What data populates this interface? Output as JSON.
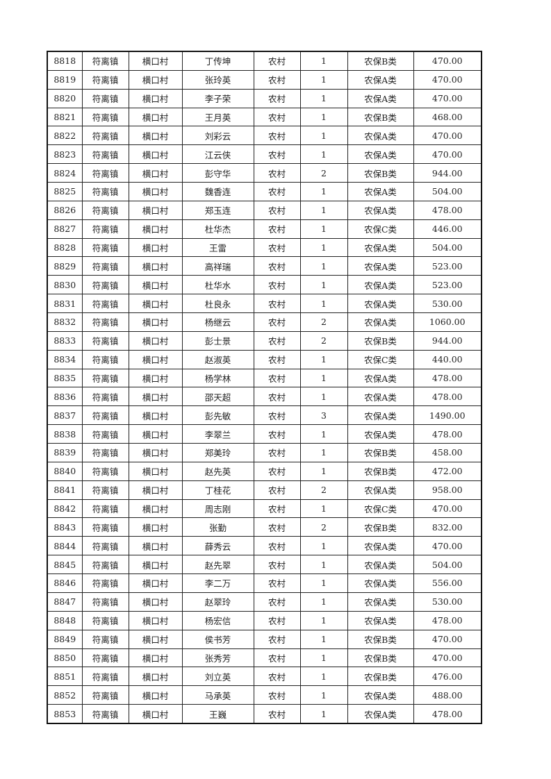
{
  "table": {
    "rows": [
      [
        "8818",
        "符离镇",
        "横口村",
        "丁传坤",
        "农村",
        "1",
        "农保B类",
        "470.00"
      ],
      [
        "8819",
        "符离镇",
        "横口村",
        "张玲英",
        "农村",
        "1",
        "农保A类",
        "470.00"
      ],
      [
        "8820",
        "符离镇",
        "横口村",
        "李子荣",
        "农村",
        "1",
        "农保A类",
        "470.00"
      ],
      [
        "8821",
        "符离镇",
        "横口村",
        "王月英",
        "农村",
        "1",
        "农保B类",
        "468.00"
      ],
      [
        "8822",
        "符离镇",
        "横口村",
        "刘彩云",
        "农村",
        "1",
        "农保A类",
        "470.00"
      ],
      [
        "8823",
        "符离镇",
        "横口村",
        "江云侠",
        "农村",
        "1",
        "农保A类",
        "470.00"
      ],
      [
        "8824",
        "符离镇",
        "横口村",
        "彭守华",
        "农村",
        "2",
        "农保B类",
        "944.00"
      ],
      [
        "8825",
        "符离镇",
        "横口村",
        "魏香连",
        "农村",
        "1",
        "农保A类",
        "504.00"
      ],
      [
        "8826",
        "符离镇",
        "横口村",
        "郑玉连",
        "农村",
        "1",
        "农保A类",
        "478.00"
      ],
      [
        "8827",
        "符离镇",
        "横口村",
        "杜华杰",
        "农村",
        "1",
        "农保C类",
        "446.00"
      ],
      [
        "8828",
        "符离镇",
        "横口村",
        "王雷",
        "农村",
        "1",
        "农保A类",
        "504.00"
      ],
      [
        "8829",
        "符离镇",
        "横口村",
        "高祥瑞",
        "农村",
        "1",
        "农保A类",
        "523.00"
      ],
      [
        "8830",
        "符离镇",
        "横口村",
        "杜华水",
        "农村",
        "1",
        "农保A类",
        "523.00"
      ],
      [
        "8831",
        "符离镇",
        "横口村",
        "杜良永",
        "农村",
        "1",
        "农保A类",
        "530.00"
      ],
      [
        "8832",
        "符离镇",
        "横口村",
        "杨继云",
        "农村",
        "2",
        "农保A类",
        "1060.00"
      ],
      [
        "8833",
        "符离镇",
        "横口村",
        "彭士景",
        "农村",
        "2",
        "农保B类",
        "944.00"
      ],
      [
        "8834",
        "符离镇",
        "横口村",
        "赵淑英",
        "农村",
        "1",
        "农保C类",
        "440.00"
      ],
      [
        "8835",
        "符离镇",
        "横口村",
        "杨学林",
        "农村",
        "1",
        "农保A类",
        "478.00"
      ],
      [
        "8836",
        "符离镇",
        "横口村",
        "邵天超",
        "农村",
        "1",
        "农保A类",
        "478.00"
      ],
      [
        "8837",
        "符离镇",
        "横口村",
        "彭先敏",
        "农村",
        "3",
        "农保A类",
        "1490.00"
      ],
      [
        "8838",
        "符离镇",
        "横口村",
        "李翠兰",
        "农村",
        "1",
        "农保A类",
        "478.00"
      ],
      [
        "8839",
        "符离镇",
        "横口村",
        "郑美玲",
        "农村",
        "1",
        "农保B类",
        "458.00"
      ],
      [
        "8840",
        "符离镇",
        "横口村",
        "赵先英",
        "农村",
        "1",
        "农保B类",
        "472.00"
      ],
      [
        "8841",
        "符离镇",
        "横口村",
        "丁桂花",
        "农村",
        "2",
        "农保A类",
        "958.00"
      ],
      [
        "8842",
        "符离镇",
        "横口村",
        "周志刚",
        "农村",
        "1",
        "农保C类",
        "470.00"
      ],
      [
        "8843",
        "符离镇",
        "横口村",
        "张勤",
        "农村",
        "2",
        "农保B类",
        "832.00"
      ],
      [
        "8844",
        "符离镇",
        "横口村",
        "薛秀云",
        "农村",
        "1",
        "农保A类",
        "470.00"
      ],
      [
        "8845",
        "符离镇",
        "横口村",
        "赵先翠",
        "农村",
        "1",
        "农保A类",
        "504.00"
      ],
      [
        "8846",
        "符离镇",
        "横口村",
        "李二万",
        "农村",
        "1",
        "农保A类",
        "556.00"
      ],
      [
        "8847",
        "符离镇",
        "横口村",
        "赵翠玲",
        "农村",
        "1",
        "农保A类",
        "530.00"
      ],
      [
        "8848",
        "符离镇",
        "横口村",
        "杨宏信",
        "农村",
        "1",
        "农保A类",
        "478.00"
      ],
      [
        "8849",
        "符离镇",
        "横口村",
        "侯书芳",
        "农村",
        "1",
        "农保B类",
        "470.00"
      ],
      [
        "8850",
        "符离镇",
        "横口村",
        "张秀芳",
        "农村",
        "1",
        "农保B类",
        "470.00"
      ],
      [
        "8851",
        "符离镇",
        "横口村",
        "刘立英",
        "农村",
        "1",
        "农保B类",
        "476.00"
      ],
      [
        "8852",
        "符离镇",
        "横口村",
        "马承英",
        "农村",
        "1",
        "农保A类",
        "488.00"
      ],
      [
        "8853",
        "符离镇",
        "横口村",
        "王巍",
        "农村",
        "1",
        "农保A类",
        "478.00"
      ]
    ]
  }
}
